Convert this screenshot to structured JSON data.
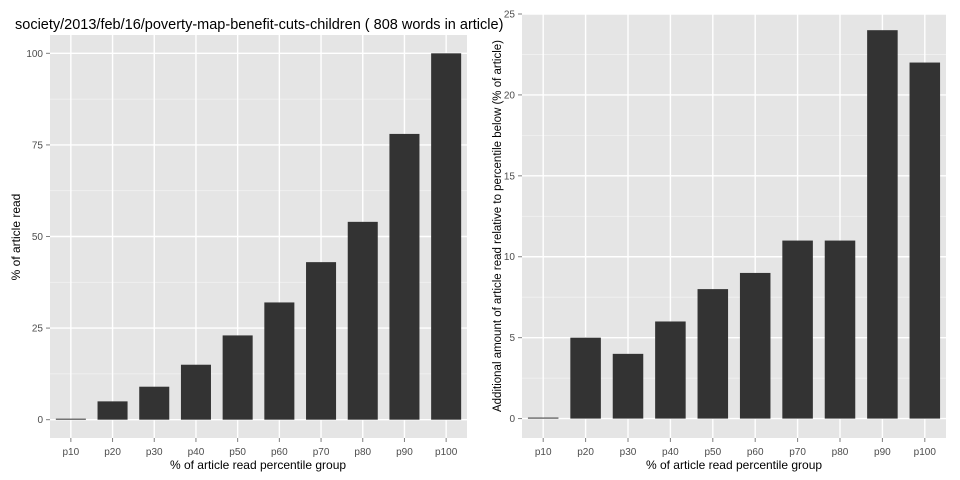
{
  "chart_data": [
    {
      "type": "bar",
      "title": "society/2013/feb/16/poverty-map-benefit-cuts-children ( 808 words in article)",
      "xlabel": "% of article read percentile group",
      "ylabel": "% of article read",
      "categories": [
        "p10",
        "p20",
        "p30",
        "p40",
        "p50",
        "p60",
        "p70",
        "p80",
        "p90",
        "p100"
      ],
      "values": [
        0,
        5,
        9,
        15,
        23,
        32,
        43,
        54,
        78,
        100
      ],
      "ylim": [
        -5,
        105
      ],
      "yticks": [
        0,
        25,
        50,
        75,
        100
      ],
      "grid": true,
      "bar_color": "#333333",
      "panel_color": "#e5e5e5"
    },
    {
      "type": "bar",
      "title": "",
      "xlabel": "% of article read percentile group",
      "ylabel": "Additional amount of article read relative to percentile below (% of article)",
      "categories": [
        "p10",
        "p20",
        "p30",
        "p40",
        "p50",
        "p60",
        "p70",
        "p80",
        "p90",
        "p100"
      ],
      "values": [
        0,
        5,
        4,
        6,
        8,
        9,
        11,
        11,
        24,
        22
      ],
      "ylim": [
        -1.2,
        25
      ],
      "yticks": [
        0,
        5,
        10,
        15,
        20,
        25
      ],
      "grid": true,
      "bar_color": "#333333",
      "panel_color": "#e5e5e5"
    }
  ]
}
